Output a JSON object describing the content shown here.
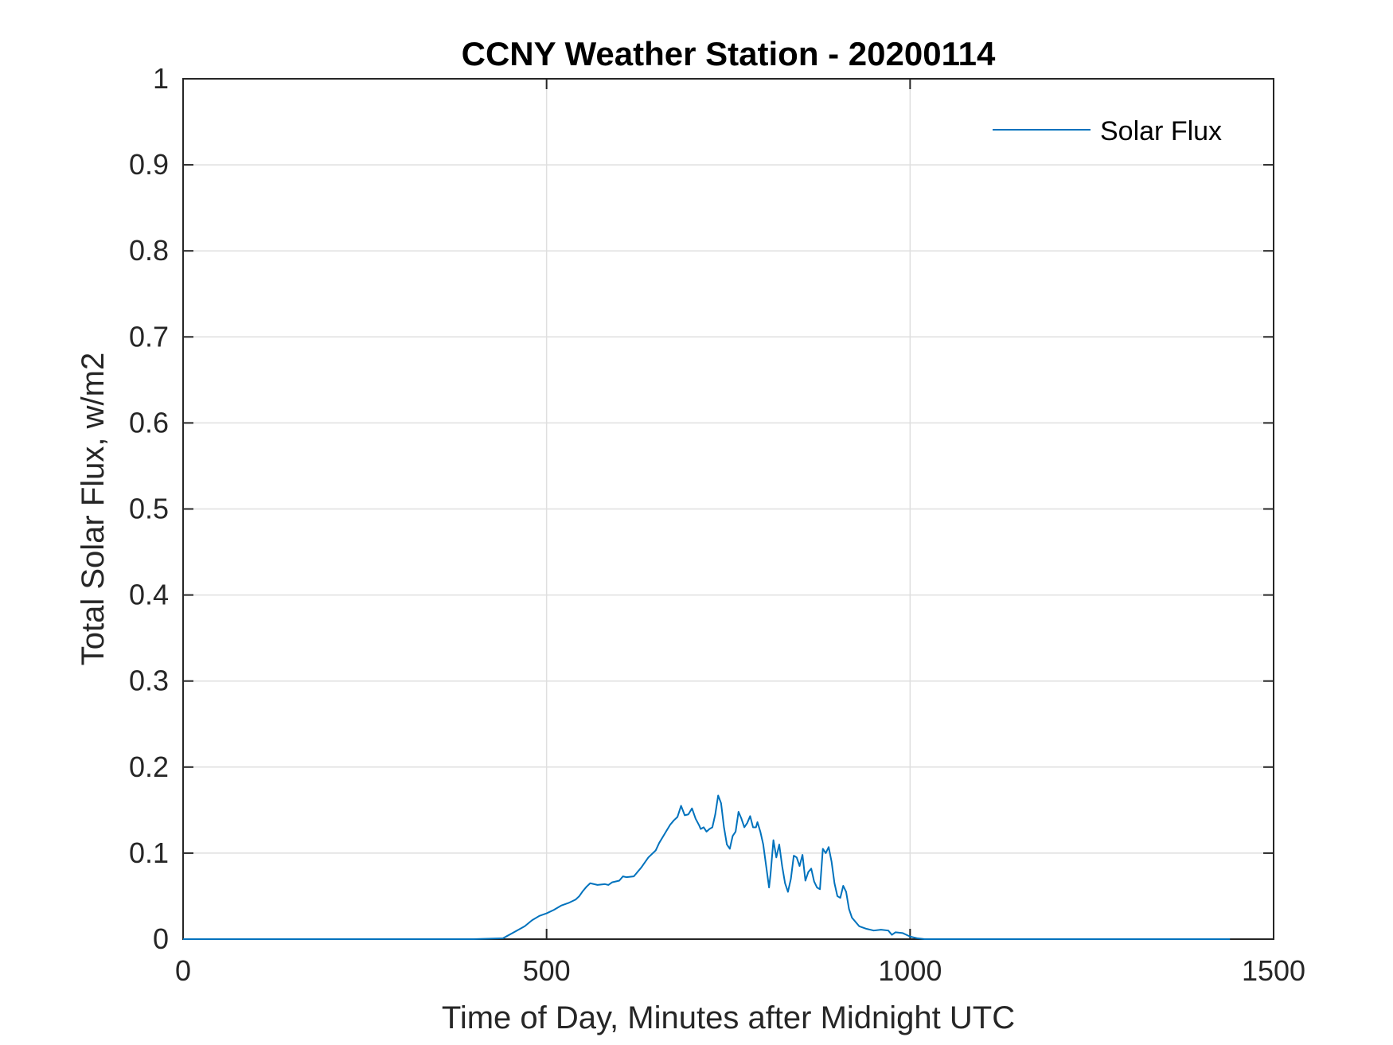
{
  "chart_data": {
    "type": "line",
    "title": "CCNY Weather Station - 20200114",
    "xlabel": "Time of Day, Minutes after Midnight UTC",
    "ylabel": "Total Solar Flux, w/m2",
    "xlim": [
      0,
      1500
    ],
    "ylim": [
      0,
      1
    ],
    "xticks": [
      0,
      500,
      1000,
      1500
    ],
    "xtick_labels": [
      "0",
      "500",
      "1000",
      "1500"
    ],
    "yticks": [
      0,
      0.1,
      0.2,
      0.3,
      0.4,
      0.5,
      0.6,
      0.7,
      0.8,
      0.9,
      1
    ],
    "ytick_labels": [
      "0",
      "0.1",
      "0.2",
      "0.3",
      "0.4",
      "0.5",
      "0.6",
      "0.7",
      "0.8",
      "0.9",
      "1"
    ],
    "grid": true,
    "legend_position": "top-right",
    "series": [
      {
        "name": "Solar Flux",
        "color": "#0072bd",
        "x": [
          0,
          100,
          200,
          300,
          400,
          440,
          455,
          470,
          480,
          490,
          500,
          510,
          520,
          530,
          540,
          545,
          550,
          555,
          560,
          570,
          580,
          585,
          590,
          600,
          605,
          610,
          620,
          630,
          640,
          650,
          655,
          660,
          665,
          670,
          675,
          680,
          685,
          690,
          695,
          700,
          705,
          710,
          712,
          716,
          720,
          724,
          728,
          732,
          736,
          740,
          744,
          748,
          752,
          756,
          760,
          764,
          768,
          772,
          776,
          780,
          784,
          788,
          790,
          794,
          798,
          802,
          806,
          808,
          812,
          816,
          820,
          824,
          828,
          832,
          836,
          840,
          844,
          848,
          852,
          856,
          860,
          864,
          868,
          872,
          876,
          880,
          884,
          888,
          892,
          896,
          900,
          904,
          908,
          912,
          916,
          920,
          930,
          940,
          950,
          960,
          970,
          975,
          980,
          990,
          1000,
          1010,
          1020,
          1100,
          1200,
          1300,
          1440
        ],
        "values": [
          0,
          0,
          0,
          0,
          0,
          0.001,
          0.008,
          0.015,
          0.022,
          0.027,
          0.03,
          0.034,
          0.039,
          0.042,
          0.046,
          0.05,
          0.056,
          0.061,
          0.065,
          0.063,
          0.064,
          0.063,
          0.066,
          0.068,
          0.073,
          0.072,
          0.073,
          0.083,
          0.095,
          0.103,
          0.112,
          0.119,
          0.126,
          0.133,
          0.138,
          0.142,
          0.155,
          0.144,
          0.145,
          0.152,
          0.14,
          0.132,
          0.128,
          0.13,
          0.125,
          0.128,
          0.13,
          0.145,
          0.167,
          0.158,
          0.13,
          0.11,
          0.105,
          0.12,
          0.125,
          0.148,
          0.14,
          0.13,
          0.135,
          0.143,
          0.13,
          0.13,
          0.136,
          0.125,
          0.11,
          0.085,
          0.06,
          0.075,
          0.115,
          0.095,
          0.11,
          0.085,
          0.065,
          0.055,
          0.07,
          0.097,
          0.095,
          0.085,
          0.098,
          0.068,
          0.078,
          0.082,
          0.067,
          0.06,
          0.058,
          0.105,
          0.1,
          0.107,
          0.09,
          0.065,
          0.05,
          0.048,
          0.062,
          0.055,
          0.035,
          0.025,
          0.015,
          0.012,
          0.01,
          0.011,
          0.01,
          0.005,
          0.008,
          0.007,
          0.003,
          0.001,
          0,
          0,
          0,
          0,
          0
        ]
      }
    ]
  }
}
